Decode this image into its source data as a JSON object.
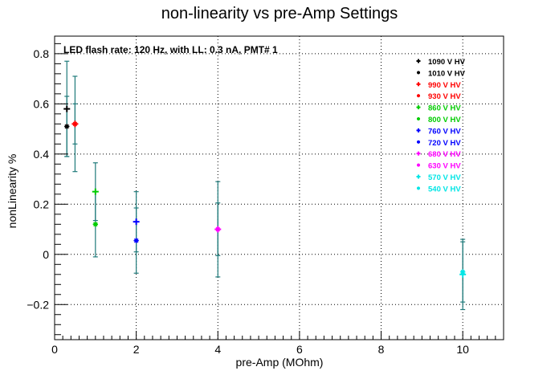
{
  "chart_data": {
    "type": "scatter",
    "title": "non-linearity vs pre-Amp Settings",
    "subtitle": "LED flash rate: 120 Hz, with LL: 0.3 nA, PMT# 1",
    "xlabel": "pre-Amp (MOhm)",
    "ylabel": "nonLinearity %",
    "xlim": [
      0,
      11
    ],
    "ylim": [
      -0.34,
      0.87
    ],
    "x_ticks": [
      0,
      2,
      4,
      6,
      8,
      10
    ],
    "x_tick_labels": [
      "0",
      "2",
      "4",
      "6",
      "8",
      "10"
    ],
    "y_ticks": [
      -0.2,
      0,
      0.2,
      0.4,
      0.6,
      0.8
    ],
    "y_tick_labels": [
      "−0.2",
      "0",
      "0.2",
      "0.4",
      "0.6",
      "0.8"
    ],
    "grid": true,
    "legend_position": "top-right",
    "error_bar_color": "#1e7a7a",
    "series": [
      {
        "name": "1090 V HV",
        "color": "#000000",
        "marker": "plus",
        "points": [
          {
            "x": 0.3,
            "y": 0.58,
            "err": 0.19
          }
        ]
      },
      {
        "name": "1010 V HV",
        "color": "#000000",
        "marker": "star",
        "points": [
          {
            "x": 0.3,
            "y": 0.51,
            "err": 0.12
          }
        ]
      },
      {
        "name": "990 V HV",
        "color": "#ff0000",
        "marker": "plus",
        "points": [
          {
            "x": 0.5,
            "y": 0.52,
            "err": 0.19
          }
        ]
      },
      {
        "name": "930 V HV",
        "color": "#ff0000",
        "marker": "star",
        "points": [
          {
            "x": 0.5,
            "y": 0.52,
            "err": 0.08
          }
        ]
      },
      {
        "name": "860 V HV",
        "color": "#00cc00",
        "marker": "plus",
        "points": [
          {
            "x": 1,
            "y": 0.25,
            "err": 0.115
          }
        ]
      },
      {
        "name": "800 V HV",
        "color": "#00cc00",
        "marker": "star",
        "points": [
          {
            "x": 1,
            "y": 0.12,
            "err": 0.13
          }
        ]
      },
      {
        "name": "760 V HV",
        "color": "#0000ff",
        "marker": "plus",
        "points": [
          {
            "x": 2,
            "y": 0.13,
            "err": 0.12
          }
        ]
      },
      {
        "name": "720 V HV",
        "color": "#0000ff",
        "marker": "star",
        "points": [
          {
            "x": 2,
            "y": 0.055,
            "err": 0.13
          }
        ]
      },
      {
        "name": "680 V HV",
        "color": "#ff00ff",
        "marker": "plus",
        "points": [
          {
            "x": 4,
            "y": 0.1,
            "err": 0.19
          }
        ]
      },
      {
        "name": "630 V HV",
        "color": "#ff00ff",
        "marker": "star",
        "points": [
          {
            "x": 4,
            "y": 0.1,
            "err": 0.105
          }
        ]
      },
      {
        "name": "570 V HV",
        "color": "#00e5e5",
        "marker": "plus",
        "points": [
          {
            "x": 10,
            "y": -0.08,
            "err": 0.14
          }
        ]
      },
      {
        "name": "540 V HV",
        "color": "#00e5e5",
        "marker": "star",
        "points": [
          {
            "x": 10,
            "y": -0.07,
            "err": 0.12
          }
        ]
      }
    ]
  }
}
